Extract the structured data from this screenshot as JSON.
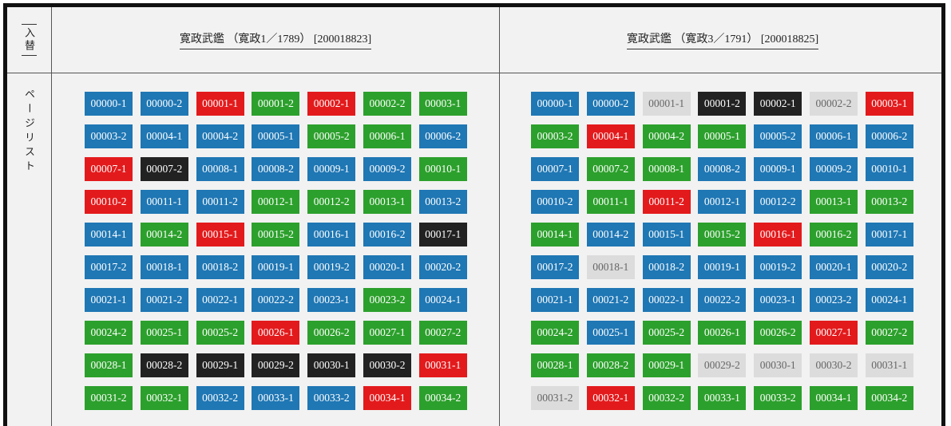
{
  "header": {
    "swap_label": "入替",
    "left_title": "寛政武鑑 （寛政1／1789） [200018823]",
    "right_title": "寛政武鑑 （寛政3／1791） [200018825]"
  },
  "side_label": "ページリスト",
  "colors": {
    "blue": "#1f77b4",
    "red": "#e31a1c",
    "green": "#2ca02c",
    "black": "#222222",
    "gray": "#dcdcdc"
  },
  "left_pages": [
    {
      "label": "00000-1",
      "color": "blue"
    },
    {
      "label": "00000-2",
      "color": "blue"
    },
    {
      "label": "00001-1",
      "color": "red"
    },
    {
      "label": "00001-2",
      "color": "green"
    },
    {
      "label": "00002-1",
      "color": "red"
    },
    {
      "label": "00002-2",
      "color": "green"
    },
    {
      "label": "00003-1",
      "color": "green"
    },
    {
      "label": "00003-2",
      "color": "blue"
    },
    {
      "label": "00004-1",
      "color": "blue"
    },
    {
      "label": "00004-2",
      "color": "blue"
    },
    {
      "label": "00005-1",
      "color": "blue"
    },
    {
      "label": "00005-2",
      "color": "green"
    },
    {
      "label": "00006-1",
      "color": "green"
    },
    {
      "label": "00006-2",
      "color": "blue"
    },
    {
      "label": "00007-1",
      "color": "red"
    },
    {
      "label": "00007-2",
      "color": "black"
    },
    {
      "label": "00008-1",
      "color": "blue"
    },
    {
      "label": "00008-2",
      "color": "blue"
    },
    {
      "label": "00009-1",
      "color": "blue"
    },
    {
      "label": "00009-2",
      "color": "blue"
    },
    {
      "label": "00010-1",
      "color": "green"
    },
    {
      "label": "00010-2",
      "color": "red"
    },
    {
      "label": "00011-1",
      "color": "blue"
    },
    {
      "label": "00011-2",
      "color": "blue"
    },
    {
      "label": "00012-1",
      "color": "green"
    },
    {
      "label": "00012-2",
      "color": "green"
    },
    {
      "label": "00013-1",
      "color": "green"
    },
    {
      "label": "00013-2",
      "color": "blue"
    },
    {
      "label": "00014-1",
      "color": "blue"
    },
    {
      "label": "00014-2",
      "color": "green"
    },
    {
      "label": "00015-1",
      "color": "red"
    },
    {
      "label": "00015-2",
      "color": "green"
    },
    {
      "label": "00016-1",
      "color": "blue"
    },
    {
      "label": "00016-2",
      "color": "blue"
    },
    {
      "label": "00017-1",
      "color": "black"
    },
    {
      "label": "00017-2",
      "color": "blue"
    },
    {
      "label": "00018-1",
      "color": "blue"
    },
    {
      "label": "00018-2",
      "color": "blue"
    },
    {
      "label": "00019-1",
      "color": "blue"
    },
    {
      "label": "00019-2",
      "color": "blue"
    },
    {
      "label": "00020-1",
      "color": "blue"
    },
    {
      "label": "00020-2",
      "color": "blue"
    },
    {
      "label": "00021-1",
      "color": "blue"
    },
    {
      "label": "00021-2",
      "color": "blue"
    },
    {
      "label": "00022-1",
      "color": "blue"
    },
    {
      "label": "00022-2",
      "color": "blue"
    },
    {
      "label": "00023-1",
      "color": "blue"
    },
    {
      "label": "00023-2",
      "color": "green"
    },
    {
      "label": "00024-1",
      "color": "blue"
    },
    {
      "label": "00024-2",
      "color": "green"
    },
    {
      "label": "00025-1",
      "color": "green"
    },
    {
      "label": "00025-2",
      "color": "green"
    },
    {
      "label": "00026-1",
      "color": "red"
    },
    {
      "label": "00026-2",
      "color": "green"
    },
    {
      "label": "00027-1",
      "color": "green"
    },
    {
      "label": "00027-2",
      "color": "green"
    },
    {
      "label": "00028-1",
      "color": "green"
    },
    {
      "label": "00028-2",
      "color": "black"
    },
    {
      "label": "00029-1",
      "color": "black"
    },
    {
      "label": "00029-2",
      "color": "black"
    },
    {
      "label": "00030-1",
      "color": "black"
    },
    {
      "label": "00030-2",
      "color": "black"
    },
    {
      "label": "00031-1",
      "color": "red"
    },
    {
      "label": "00031-2",
      "color": "green"
    },
    {
      "label": "00032-1",
      "color": "green"
    },
    {
      "label": "00032-2",
      "color": "blue"
    },
    {
      "label": "00033-1",
      "color": "blue"
    },
    {
      "label": "00033-2",
      "color": "blue"
    },
    {
      "label": "00034-1",
      "color": "red"
    },
    {
      "label": "00034-2",
      "color": "green"
    }
  ],
  "right_pages": [
    {
      "label": "00000-1",
      "color": "blue"
    },
    {
      "label": "00000-2",
      "color": "blue"
    },
    {
      "label": "00001-1",
      "color": "gray"
    },
    {
      "label": "00001-2",
      "color": "black"
    },
    {
      "label": "00002-1",
      "color": "black"
    },
    {
      "label": "00002-2",
      "color": "gray"
    },
    {
      "label": "00003-1",
      "color": "red"
    },
    {
      "label": "00003-2",
      "color": "green"
    },
    {
      "label": "00004-1",
      "color": "red"
    },
    {
      "label": "00004-2",
      "color": "green"
    },
    {
      "label": "00005-1",
      "color": "green"
    },
    {
      "label": "00005-2",
      "color": "blue"
    },
    {
      "label": "00006-1",
      "color": "blue"
    },
    {
      "label": "00006-2",
      "color": "blue"
    },
    {
      "label": "00007-1",
      "color": "blue"
    },
    {
      "label": "00007-2",
      "color": "green"
    },
    {
      "label": "00008-1",
      "color": "green"
    },
    {
      "label": "00008-2",
      "color": "blue"
    },
    {
      "label": "00009-1",
      "color": "blue"
    },
    {
      "label": "00009-2",
      "color": "blue"
    },
    {
      "label": "00010-1",
      "color": "blue"
    },
    {
      "label": "00010-2",
      "color": "blue"
    },
    {
      "label": "00011-1",
      "color": "green"
    },
    {
      "label": "00011-2",
      "color": "red"
    },
    {
      "label": "00012-1",
      "color": "blue"
    },
    {
      "label": "00012-2",
      "color": "blue"
    },
    {
      "label": "00013-1",
      "color": "green"
    },
    {
      "label": "00013-2",
      "color": "green"
    },
    {
      "label": "00014-1",
      "color": "green"
    },
    {
      "label": "00014-2",
      "color": "blue"
    },
    {
      "label": "00015-1",
      "color": "blue"
    },
    {
      "label": "00015-2",
      "color": "green"
    },
    {
      "label": "00016-1",
      "color": "red"
    },
    {
      "label": "00016-2",
      "color": "green"
    },
    {
      "label": "00017-1",
      "color": "blue"
    },
    {
      "label": "00017-2",
      "color": "blue"
    },
    {
      "label": "00018-1",
      "color": "gray"
    },
    {
      "label": "00018-2",
      "color": "blue"
    },
    {
      "label": "00019-1",
      "color": "blue"
    },
    {
      "label": "00019-2",
      "color": "blue"
    },
    {
      "label": "00020-1",
      "color": "blue"
    },
    {
      "label": "00020-2",
      "color": "blue"
    },
    {
      "label": "00021-1",
      "color": "blue"
    },
    {
      "label": "00021-2",
      "color": "blue"
    },
    {
      "label": "00022-1",
      "color": "blue"
    },
    {
      "label": "00022-2",
      "color": "blue"
    },
    {
      "label": "00023-1",
      "color": "blue"
    },
    {
      "label": "00023-2",
      "color": "blue"
    },
    {
      "label": "00024-1",
      "color": "blue"
    },
    {
      "label": "00024-2",
      "color": "green"
    },
    {
      "label": "00025-1",
      "color": "blue"
    },
    {
      "label": "00025-2",
      "color": "green"
    },
    {
      "label": "00026-1",
      "color": "green"
    },
    {
      "label": "00026-2",
      "color": "green"
    },
    {
      "label": "00027-1",
      "color": "red"
    },
    {
      "label": "00027-2",
      "color": "green"
    },
    {
      "label": "00028-1",
      "color": "green"
    },
    {
      "label": "00028-2",
      "color": "green"
    },
    {
      "label": "00029-1",
      "color": "green"
    },
    {
      "label": "00029-2",
      "color": "gray"
    },
    {
      "label": "00030-1",
      "color": "gray"
    },
    {
      "label": "00030-2",
      "color": "gray"
    },
    {
      "label": "00031-1",
      "color": "gray"
    },
    {
      "label": "00031-2",
      "color": "gray"
    },
    {
      "label": "00032-1",
      "color": "red"
    },
    {
      "label": "00032-2",
      "color": "green"
    },
    {
      "label": "00033-1",
      "color": "green"
    },
    {
      "label": "00033-2",
      "color": "green"
    },
    {
      "label": "00034-1",
      "color": "green"
    },
    {
      "label": "00034-2",
      "color": "green"
    }
  ]
}
